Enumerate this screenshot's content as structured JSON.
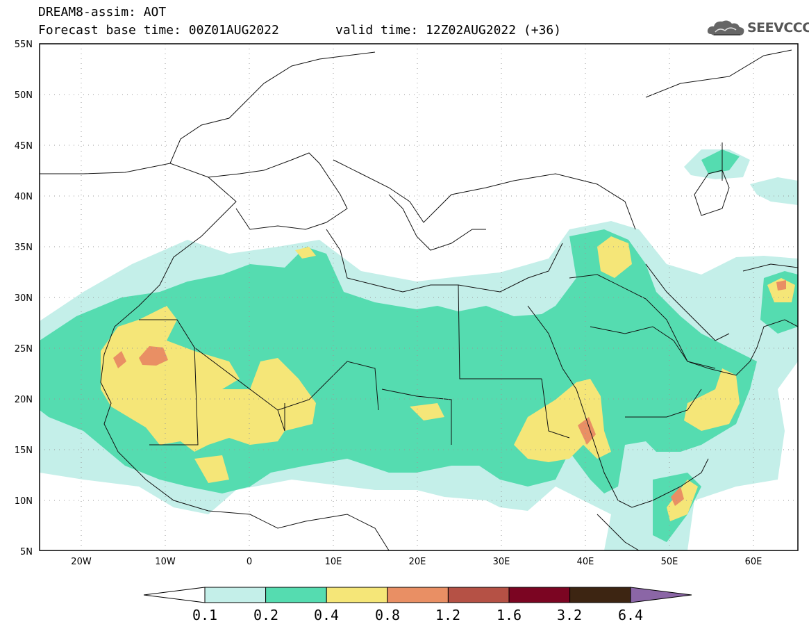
{
  "title": {
    "line1": "DREAM8-assim: AOT",
    "line2": "Forecast base time: 00Z01AUG2022",
    "valid": "valid time: 12Z02AUG2022 (+36)"
  },
  "logo": {
    "text": "SEEVCCC",
    "icon": "cloud-icon"
  },
  "map": {
    "lat_ticks": [
      "55N",
      "50N",
      "45N",
      "40N",
      "35N",
      "30N",
      "25N",
      "20N",
      "15N",
      "10N",
      "5N"
    ],
    "lon_ticks": [
      "20W",
      "10W",
      "0",
      "10E",
      "20E",
      "30E",
      "40E",
      "50E",
      "60E"
    ],
    "lon_range": [
      -25,
      65
    ],
    "lat_range": [
      5,
      55
    ]
  },
  "colorbar": {
    "colors": [
      "#c4efe9",
      "#55dcb0",
      "#f5e678",
      "#e98f64",
      "#b55145",
      "#7b0522",
      "#3d2512",
      "#8b66a6"
    ],
    "labels": [
      "0.1",
      "0.2",
      "0.4",
      "0.8",
      "1.2",
      "1.6",
      "3.2",
      "6.4"
    ],
    "under_color": "#ffffff"
  }
}
